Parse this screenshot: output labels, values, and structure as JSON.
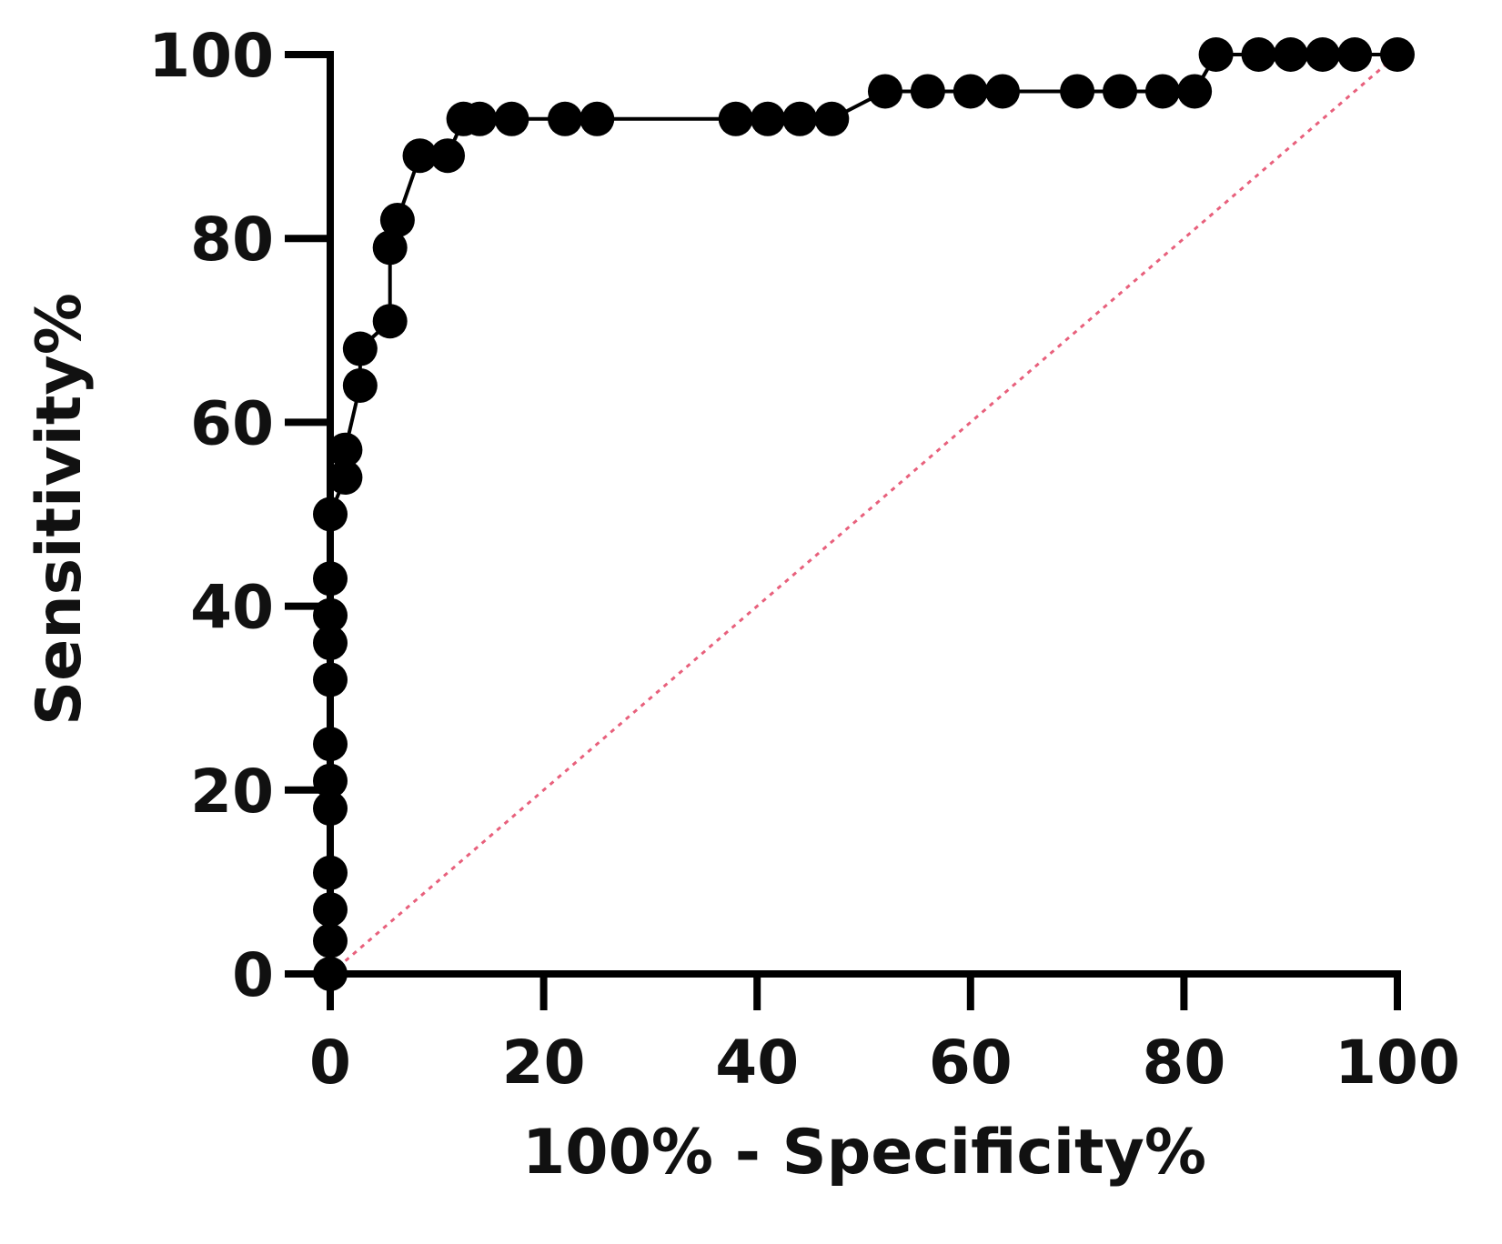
{
  "chart_data": {
    "type": "line",
    "xlabel": "100% - Specificity%",
    "ylabel": "Sensitivity%",
    "xlim": [
      0,
      100
    ],
    "xticks": [
      0,
      20,
      40,
      60,
      80,
      100
    ],
    "ylim": [
      0,
      100
    ],
    "yticks": [
      0,
      20,
      40,
      60,
      80,
      100
    ],
    "series": [
      {
        "color": "#000000",
        "markers": true,
        "x": [
          0,
          0,
          0,
          0,
          0,
          0,
          0,
          0,
          0,
          0,
          0,
          0,
          1.4,
          1.4,
          2.8,
          2.8,
          5.6,
          5.6,
          6.3,
          8.4,
          11,
          12.5,
          14,
          17,
          22,
          25,
          38,
          41,
          44,
          47,
          52,
          56,
          60,
          63,
          70,
          74,
          78,
          81,
          83,
          87,
          90,
          93,
          96,
          100
        ],
        "values": [
          0,
          3.6,
          7,
          11,
          18,
          21,
          25,
          32,
          36,
          39,
          43,
          50,
          54,
          57,
          64,
          68,
          71,
          79,
          82,
          89,
          89,
          93,
          93,
          93,
          93,
          93,
          93,
          93,
          93,
          93,
          96,
          96,
          96,
          96,
          96,
          96,
          96,
          96,
          100,
          100,
          100,
          100,
          100,
          100
        ]
      },
      {
        "color": "#e8607c",
        "markers": false,
        "dashed": true,
        "x": [
          0,
          100
        ],
        "values": [
          0,
          100
        ]
      }
    ]
  }
}
